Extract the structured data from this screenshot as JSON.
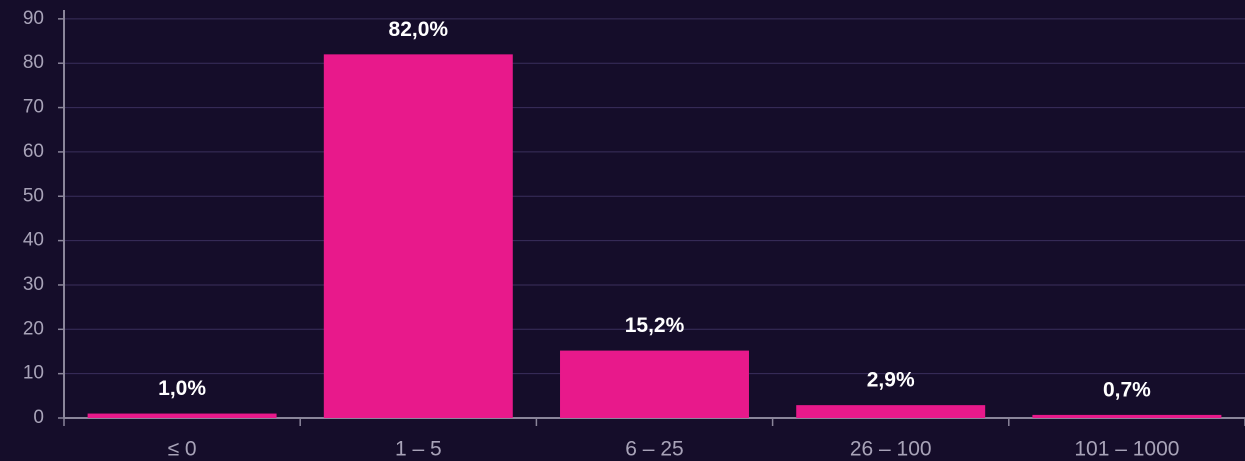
{
  "chart_data": {
    "type": "bar",
    "categories": [
      "≤ 0",
      "1 – 5",
      "6 – 25",
      "26 – 100",
      "101 – 1000"
    ],
    "values": [
      1.0,
      82.0,
      15.2,
      2.9,
      0.7
    ],
    "value_labels": [
      "1,0%",
      "82,0%",
      "15,2%",
      "2,9%",
      "0,7%"
    ],
    "color": "#e8198b",
    "ylim": [
      0,
      92
    ],
    "yticks": [
      0,
      10,
      20,
      30,
      40,
      50,
      60,
      70,
      80,
      90
    ],
    "grid": true
  }
}
